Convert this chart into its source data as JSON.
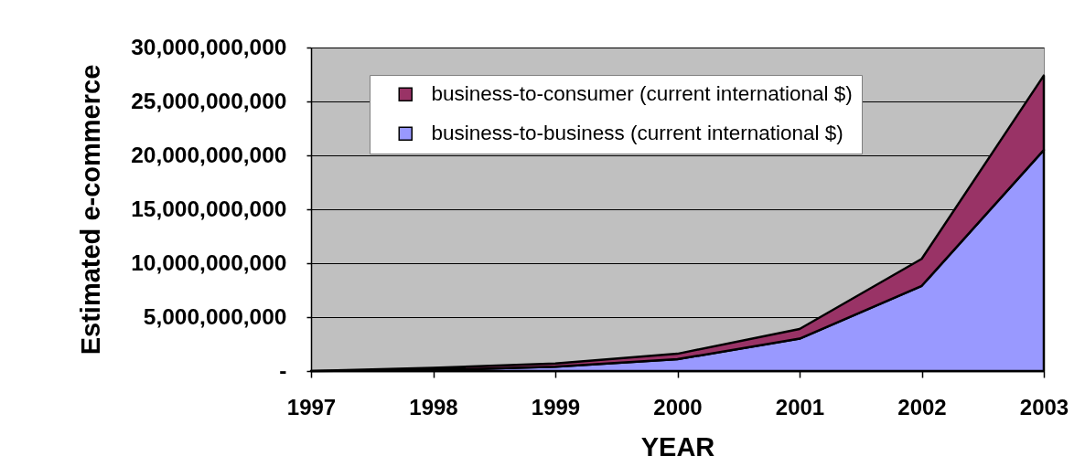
{
  "chart_data": {
    "type": "area",
    "stacked": true,
    "xlabel": "YEAR",
    "ylabel": "Estimated e-commerce",
    "categories": [
      "1997",
      "1998",
      "1999",
      "2000",
      "2001",
      "2002",
      "2003"
    ],
    "series": [
      {
        "name": "business-to-business (current international $)",
        "color": "#9999ff",
        "values": [
          0,
          100000000,
          400000000,
          1100000000,
          3000000000,
          7900000000,
          20500000000
        ]
      },
      {
        "name": "business-to-consumer (current international $)",
        "color": "#993366",
        "values": [
          0,
          200000000,
          300000000,
          500000000,
          900000000,
          2500000000,
          6900000000
        ]
      }
    ],
    "ylim": [
      0,
      30000000000
    ],
    "yticks": [
      {
        "value": 0,
        "label": "-"
      },
      {
        "value": 5000000000,
        "label": "5,000,000,000"
      },
      {
        "value": 10000000000,
        "label": "10,000,000,000"
      },
      {
        "value": 15000000000,
        "label": "15,000,000,000"
      },
      {
        "value": 20000000000,
        "label": "20,000,000,000"
      },
      {
        "value": 25000000000,
        "label": "25,000,000,000"
      },
      {
        "value": 30000000000,
        "label": "30,000,000,000"
      }
    ],
    "grid": "y",
    "legend": "top left"
  }
}
